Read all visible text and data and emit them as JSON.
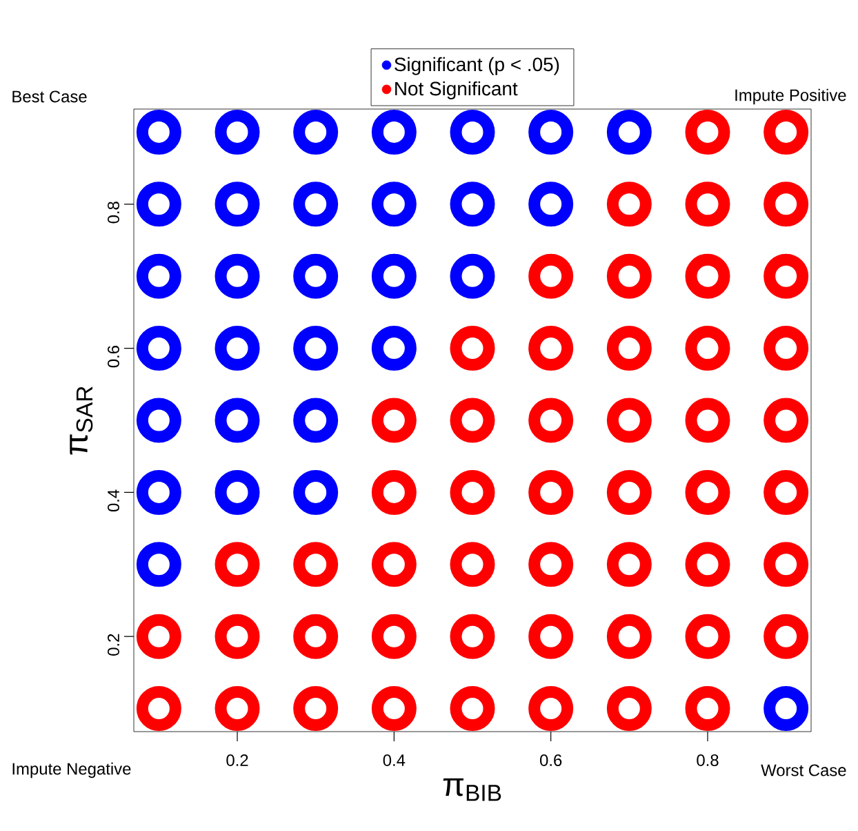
{
  "chart_data": {
    "type": "scatter",
    "xlabel": "π$_{BIB}$",
    "ylabel": "π$_{SAR}$",
    "xlim": [
      0.068,
      0.932
    ],
    "ylim": [
      0.068,
      0.932
    ],
    "xticks": [
      0.2,
      0.4,
      0.6,
      0.8
    ],
    "yticks": [
      0.2,
      0.4,
      0.6,
      0.8
    ],
    "legend": "top",
    "marker": "circle",
    "grid": false,
    "annotations": [
      "Best Case",
      "Impute Positive",
      "Impute Negative",
      "Worst Case"
    ],
    "series": [
      {
        "name": "Significant (p < .05)",
        "color": "#0000ff",
        "x": [
          0.1,
          0.2,
          0.3,
          0.4,
          0.5,
          0.6,
          0.7,
          0.1,
          0.2,
          0.3,
          0.4,
          0.5,
          0.6,
          0.1,
          0.2,
          0.3,
          0.4,
          0.5,
          0.1,
          0.2,
          0.3,
          0.4,
          0.1,
          0.2,
          0.3,
          0.1,
          0.2,
          0.3,
          0.1,
          0.9
        ],
        "values": [
          0.9,
          0.9,
          0.9,
          0.9,
          0.9,
          0.9,
          0.9,
          0.8,
          0.8,
          0.8,
          0.8,
          0.8,
          0.8,
          0.7,
          0.7,
          0.7,
          0.7,
          0.7,
          0.6,
          0.6,
          0.6,
          0.6,
          0.5,
          0.5,
          0.5,
          0.4,
          0.4,
          0.4,
          0.3,
          0.1
        ]
      },
      {
        "name": "Not Significant",
        "color": "#ff0000",
        "x": [
          0.8,
          0.9,
          0.7,
          0.8,
          0.9,
          0.6,
          0.7,
          0.8,
          0.9,
          0.5,
          0.6,
          0.7,
          0.8,
          0.9,
          0.4,
          0.5,
          0.6,
          0.7,
          0.8,
          0.9,
          0.4,
          0.5,
          0.6,
          0.7,
          0.8,
          0.9,
          0.2,
          0.3,
          0.4,
          0.5,
          0.6,
          0.7,
          0.8,
          0.9,
          0.1,
          0.2,
          0.3,
          0.4,
          0.5,
          0.6,
          0.7,
          0.8,
          0.9,
          0.1,
          0.2,
          0.3,
          0.4,
          0.5,
          0.6,
          0.7,
          0.8
        ],
        "values": [
          0.9,
          0.9,
          0.8,
          0.8,
          0.8,
          0.7,
          0.7,
          0.7,
          0.7,
          0.6,
          0.6,
          0.6,
          0.6,
          0.6,
          0.5,
          0.5,
          0.5,
          0.5,
          0.5,
          0.5,
          0.4,
          0.4,
          0.4,
          0.4,
          0.4,
          0.4,
          0.3,
          0.3,
          0.3,
          0.3,
          0.3,
          0.3,
          0.3,
          0.3,
          0.2,
          0.2,
          0.2,
          0.2,
          0.2,
          0.2,
          0.2,
          0.2,
          0.2,
          0.1,
          0.1,
          0.1,
          0.1,
          0.1,
          0.1,
          0.1,
          0.1
        ]
      }
    ]
  }
}
